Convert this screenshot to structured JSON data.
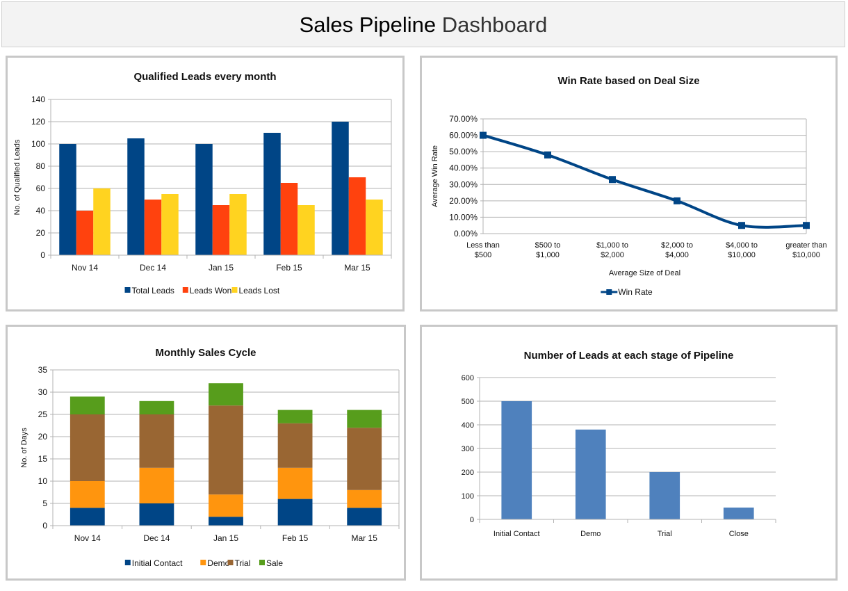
{
  "header": {
    "title_part1": "Sales Pipeline",
    "title_part2": "Dashboard"
  },
  "chart_data": [
    {
      "id": "qualified-leads",
      "type": "bar",
      "title": "Qualified  Leads  every  month",
      "ylabel": "No. of Qualified Leads",
      "xlabel": "",
      "ylim": [
        0,
        140
      ],
      "yticks": [
        0,
        20,
        40,
        60,
        80,
        100,
        120,
        140
      ],
      "categories": [
        "Nov 14",
        "Dec 14",
        "Jan 15",
        "Feb 15",
        "Mar 15"
      ],
      "series": [
        {
          "name": "Total Leads",
          "color": "#004586",
          "values": [
            100,
            105,
            100,
            110,
            120
          ]
        },
        {
          "name": "Leads Won",
          "color": "#ff420e",
          "values": [
            40,
            50,
            45,
            65,
            70
          ]
        },
        {
          "name": "Leads Lost",
          "color": "#ffd320",
          "values": [
            60,
            55,
            55,
            45,
            50
          ]
        }
      ],
      "grid": true,
      "legend": "bottom"
    },
    {
      "id": "win-rate",
      "type": "line",
      "title": "Win Rate based  on Deal Size",
      "ylabel": "Average Win Rate",
      "xlabel": "Average Size of Deal",
      "ylim": [
        0,
        70
      ],
      "yticks": [
        "0.00%",
        "10.00%",
        "20.00%",
        "30.00%",
        "40.00%",
        "50.00%",
        "60.00%",
        "70.00%"
      ],
      "categories": [
        [
          "Less than",
          "$500"
        ],
        [
          "$500 to",
          "$1,000"
        ],
        [
          "$1,000 to",
          "$2,000"
        ],
        [
          "$2,000 to",
          "$4,000"
        ],
        [
          "$4,000 to",
          "$10,000"
        ],
        [
          "greater than",
          "$10,000"
        ]
      ],
      "series": [
        {
          "name": "Win Rate",
          "color": "#004586",
          "values": [
            60,
            48,
            33,
            20,
            5,
            5
          ]
        }
      ],
      "grid": true,
      "legend": "bottom"
    },
    {
      "id": "sales-cycle",
      "type": "bar",
      "stacked": true,
      "title": "Monthly  Sales  Cycle",
      "ylabel": "No. of Days",
      "xlabel": "",
      "ylim": [
        0,
        35
      ],
      "yticks": [
        0,
        5,
        10,
        15,
        20,
        25,
        30,
        35
      ],
      "categories": [
        "Nov 14",
        "Dec 14",
        "Jan 15",
        "Feb 15",
        "Mar 15"
      ],
      "series": [
        {
          "name": "Initial Contact",
          "color": "#004586",
          "values": [
            4,
            5,
            2,
            6,
            4
          ]
        },
        {
          "name": "Demo",
          "color": "#ff950e",
          "values": [
            6,
            8,
            5,
            7,
            4
          ]
        },
        {
          "name": "Trial",
          "color": "#996633",
          "values": [
            15,
            12,
            20,
            10,
            14
          ]
        },
        {
          "name": "Sale",
          "color": "#579d1c",
          "values": [
            4,
            3,
            5,
            3,
            4
          ]
        }
      ],
      "grid": true,
      "legend": "bottom"
    },
    {
      "id": "pipeline-stage",
      "type": "bar",
      "title": "Number of Leads at each stage of Pipeline",
      "ylabel": "",
      "xlabel": "",
      "ylim": [
        0,
        600
      ],
      "yticks": [
        0,
        100,
        200,
        300,
        400,
        500,
        600
      ],
      "categories": [
        "Initial Contact",
        "Demo",
        "Trial",
        "Close"
      ],
      "series": [
        {
          "color": "#4f81bd",
          "values": [
            500,
            380,
            200,
            50
          ]
        }
      ],
      "grid": true,
      "legend": "none"
    }
  ]
}
